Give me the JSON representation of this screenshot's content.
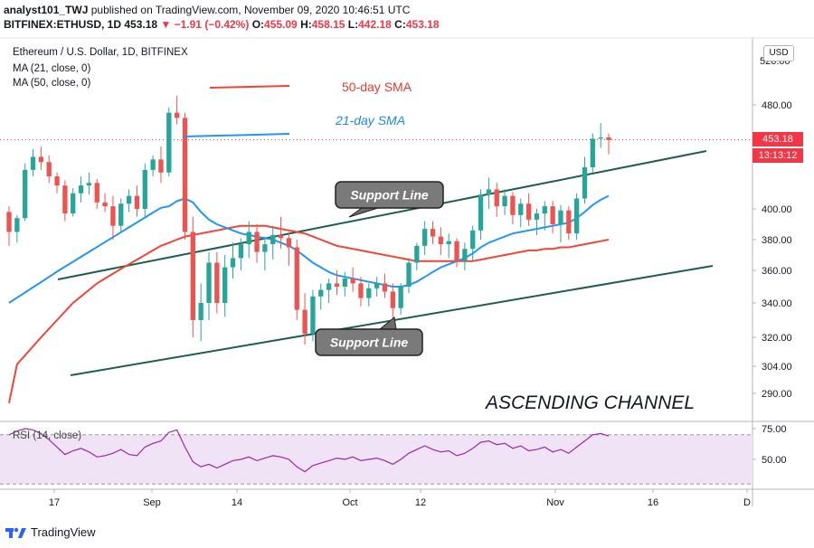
{
  "header": {
    "line1_user": "analyst101_TWJ",
    "line1_rest": " published on TradingView.com, November 09, 2020 10:46:51 UTC",
    "symbol": "BITFINEX:ETHUSD, 1D",
    "price": "453.18",
    "change": "▼ −1.91 (−0.42%)",
    "o_label": "O:",
    "o": "455.09",
    "h_label": "H:",
    "h": "458.15",
    "l_label": "L:",
    "l": "442.18",
    "c_label": "C:",
    "c": "453.18"
  },
  "legend": {
    "title": "Ethereum / U.S. Dollar, 1D, BITFINEX",
    "ma21": "MA (21, close, 0)",
    "ma50": "MA (50, close, 0)",
    "rsi": "RSI (14, close)"
  },
  "annotations": {
    "sma50": "50-day SMA",
    "sma21": "21-day SMA",
    "support_upper": "Support Line",
    "support_lower": "Support Line",
    "channel": "ASCENDING CHANNEL"
  },
  "price_axis": {
    "currency": "USD",
    "last_price": "453.18",
    "countdown": "13:13:12",
    "top_label": "520.00"
  },
  "footer": {
    "brand": "TradingView"
  },
  "colors": {
    "up": "#26a69a",
    "down": "#ef5350",
    "ma21": "#2196f3",
    "ma50": "#f44336",
    "rsi": "#9c27b0",
    "rsi_band": "#efe3f5",
    "trendline": "#1e5e4e"
  },
  "chart_data": {
    "type": "candlestick",
    "title": "Ethereum / U.S. Dollar, 1D, BITFINEX",
    "x_tick_labels": [
      "17",
      "Sep",
      "14",
      "Oct",
      "12",
      "Nov",
      "16",
      "D"
    ],
    "y_tick_labels": [
      "480.00",
      "400.00",
      "380.00",
      "360.00",
      "340.00",
      "320.00",
      "304.00",
      "290.00"
    ],
    "rsi_tick_labels": [
      "75.00",
      "50.00"
    ],
    "candles": [
      [
        398,
        402,
        376,
        385
      ],
      [
        385,
        396,
        378,
        394
      ],
      [
        394,
        435,
        392,
        430
      ],
      [
        430,
        446,
        425,
        440
      ],
      [
        440,
        448,
        430,
        436
      ],
      [
        436,
        441,
        420,
        425
      ],
      [
        425,
        428,
        412,
        418
      ],
      [
        418,
        422,
        392,
        397
      ],
      [
        397,
        416,
        395,
        412
      ],
      [
        412,
        425,
        405,
        418
      ],
      [
        418,
        428,
        411,
        420
      ],
      [
        420,
        423,
        400,
        405
      ],
      [
        405,
        412,
        398,
        402
      ],
      [
        402,
        410,
        380,
        389
      ],
      [
        389,
        408,
        385,
        404
      ],
      [
        404,
        415,
        398,
        410
      ],
      [
        410,
        418,
        395,
        400
      ],
      [
        400,
        435,
        395,
        430
      ],
      [
        430,
        441,
        425,
        438
      ],
      [
        438,
        448,
        420,
        428
      ],
      [
        428,
        478,
        425,
        474
      ],
      [
        474,
        488,
        465,
        470
      ],
      [
        470,
        474,
        380,
        385
      ],
      [
        385,
        395,
        320,
        330
      ],
      [
        330,
        352,
        318,
        340
      ],
      [
        340,
        372,
        330,
        365
      ],
      [
        365,
        372,
        334,
        340
      ],
      [
        340,
        370,
        332,
        362
      ],
      [
        362,
        378,
        355,
        368
      ],
      [
        368,
        381,
        360,
        377
      ],
      [
        377,
        392,
        368,
        385
      ],
      [
        385,
        390,
        365,
        372
      ],
      [
        372,
        382,
        360,
        377
      ],
      [
        377,
        389,
        367,
        383
      ],
      [
        383,
        395,
        374,
        381
      ],
      [
        381,
        385,
        363,
        375
      ],
      [
        375,
        380,
        330,
        336
      ],
      [
        336,
        346,
        316,
        322
      ],
      [
        322,
        348,
        318,
        344
      ],
      [
        344,
        352,
        336,
        348
      ],
      [
        348,
        355,
        340,
        352
      ],
      [
        352,
        360,
        345,
        350
      ],
      [
        350,
        359,
        344,
        355
      ],
      [
        355,
        362,
        347,
        352
      ],
      [
        352,
        356,
        338,
        343
      ],
      [
        343,
        352,
        338,
        349
      ],
      [
        349,
        356,
        344,
        352
      ],
      [
        352,
        358,
        343,
        347
      ],
      [
        347,
        352,
        330,
        337
      ],
      [
        337,
        352,
        333,
        350
      ],
      [
        350,
        368,
        346,
        365
      ],
      [
        365,
        378,
        360,
        376
      ],
      [
        376,
        392,
        370,
        387
      ],
      [
        387,
        392,
        377,
        382
      ],
      [
        382,
        388,
        370,
        377
      ],
      [
        377,
        384,
        368,
        379
      ],
      [
        379,
        381,
        362,
        366
      ],
      [
        366,
        378,
        360,
        374
      ],
      [
        374,
        389,
        366,
        386
      ],
      [
        386,
        415,
        380,
        411
      ],
      [
        411,
        424,
        400,
        415
      ],
      [
        415,
        420,
        395,
        402
      ],
      [
        402,
        415,
        396,
        410
      ],
      [
        410,
        413,
        390,
        396
      ],
      [
        396,
        408,
        388,
        404
      ],
      [
        404,
        412,
        389,
        393
      ],
      [
        393,
        400,
        383,
        397
      ],
      [
        397,
        406,
        386,
        402
      ],
      [
        402,
        406,
        384,
        390
      ],
      [
        390,
        403,
        378,
        399
      ],
      [
        399,
        402,
        380,
        384
      ],
      [
        384,
        412,
        380,
        408
      ],
      [
        408,
        440,
        404,
        432
      ],
      [
        432,
        458,
        428,
        454
      ],
      [
        454,
        466,
        447,
        455
      ],
      [
        455,
        458,
        442,
        453
      ]
    ],
    "ma21": [
      null,
      null,
      null,
      null,
      null,
      null,
      null,
      null,
      null,
      null,
      null,
      null,
      null,
      null,
      null,
      null,
      null,
      null,
      null,
      null,
      402,
      406,
      408,
      405,
      398,
      393,
      390,
      388,
      386,
      384,
      383,
      382,
      381,
      380,
      378,
      376,
      373,
      369,
      365,
      362,
      359,
      357,
      356,
      355,
      354,
      353,
      352,
      351,
      350,
      350,
      351,
      353,
      356,
      359,
      362,
      364,
      366,
      368,
      371,
      375,
      378,
      380,
      382,
      384,
      385,
      386,
      387,
      388,
      389,
      390,
      391,
      394,
      398,
      403,
      407,
      410
    ],
    "ma50": [
      300,
      305,
      310,
      315,
      320,
      325,
      330,
      335,
      340,
      344,
      348,
      352,
      355,
      358,
      361,
      364,
      367,
      370,
      373,
      376,
      378,
      380,
      382,
      383,
      384,
      385,
      386,
      387,
      388,
      389,
      389,
      389,
      389,
      388,
      387,
      386,
      385,
      384,
      382,
      380,
      378,
      376,
      375,
      374,
      373,
      372,
      371,
      370,
      369,
      368,
      367,
      366,
      366,
      366,
      366,
      366,
      366,
      366,
      366,
      367,
      368,
      369,
      370,
      371,
      372,
      373,
      373,
      374,
      374,
      375,
      375,
      376,
      377,
      378,
      379,
      380
    ],
    "rsi": [
      70,
      73,
      75,
      74,
      71,
      66,
      60,
      54,
      57,
      59,
      56,
      52,
      53,
      55,
      58,
      54,
      53,
      60,
      63,
      65,
      72,
      74,
      60,
      48,
      44,
      46,
      43,
      46,
      49,
      50,
      52,
      49,
      51,
      53,
      52,
      50,
      44,
      40,
      45,
      47,
      49,
      51,
      50,
      52,
      49,
      50,
      51,
      49,
      46,
      50,
      55,
      58,
      61,
      58,
      56,
      57,
      53,
      55,
      59,
      64,
      65,
      62,
      63,
      59,
      61,
      57,
      58,
      60,
      56,
      58,
      55,
      60,
      65,
      70,
      71,
      69
    ],
    "ma21_annotation_segment": [
      [
        203,
        151
      ],
      [
        320,
        148
      ]
    ],
    "ma50_annotation_segment": [
      [
        232,
        97
      ],
      [
        320,
        95
      ]
    ]
  }
}
